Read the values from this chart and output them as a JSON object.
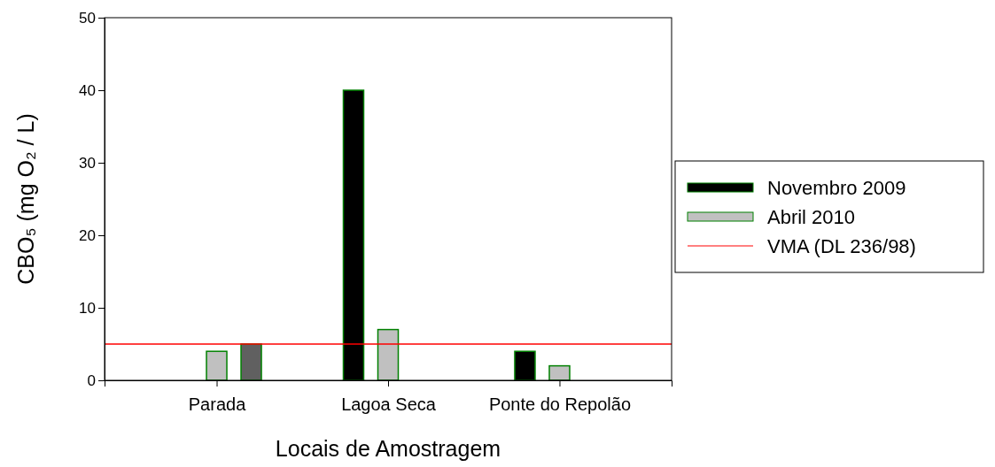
{
  "chart_data": {
    "type": "bar",
    "xlabel": "Locais de Amostragem",
    "ylabel": "CBO₅ (mg O₂ / L)",
    "categories": [
      "Parada",
      "Lagoa Seca",
      "Ponte do Repolão"
    ],
    "series": [
      {
        "name": "Novembro 2009",
        "color": "#000000",
        "values": [
          null,
          40,
          4
        ]
      },
      {
        "name": "Abril 2010",
        "color": "#c0c0c0",
        "values": [
          4,
          7,
          2
        ]
      },
      {
        "color": "#606060",
        "values": [
          5,
          null,
          null
        ]
      }
    ],
    "ylim": [
      0,
      50
    ],
    "yticks": [
      0,
      10,
      20,
      30,
      40,
      50
    ],
    "ref_lines": [
      {
        "axis": "y",
        "value": 5,
        "label": "VMA (DL 236/98)",
        "color": "#ff0000"
      }
    ],
    "legend": "right"
  }
}
